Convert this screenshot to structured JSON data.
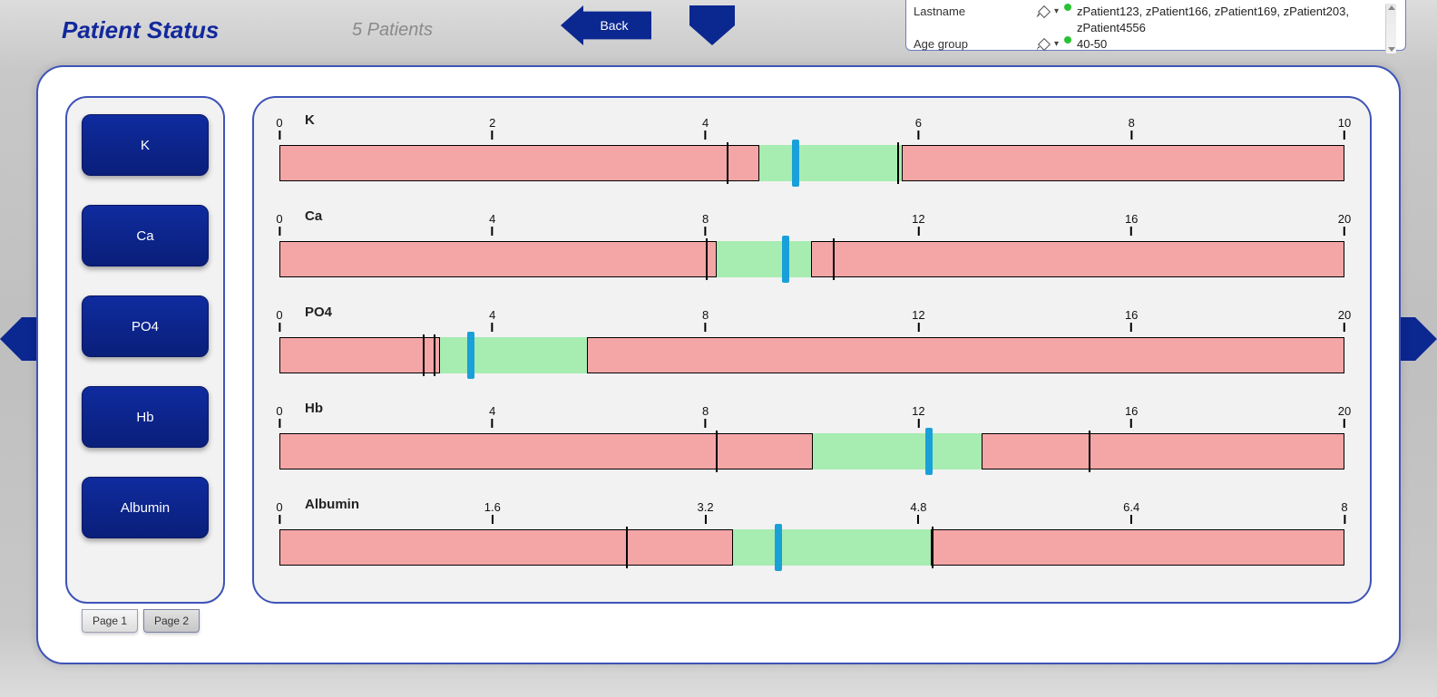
{
  "header": {
    "title": "Patient Status",
    "subtitle": "5 Patients",
    "back_label": "Back"
  },
  "filters": {
    "rows": [
      {
        "label": "Lastname",
        "value": "zPatient123, zPatient166, zPatient169, zPatient203, zPatient4556"
      },
      {
        "label": "Age group",
        "value": "40-50"
      }
    ]
  },
  "colors": {
    "brand": "#0b2790",
    "card_border": "#3e54b7",
    "bar_red": "#f4a6a6",
    "bar_green": "#a7ecb1",
    "cursor_blue": "#1aa0d8"
  },
  "analyte_buttons": [
    "K",
    "Ca",
    "PO4",
    "Hb",
    "Albumin"
  ],
  "page_tabs": {
    "labels": [
      "Page 1",
      "Page 2"
    ],
    "active_index": 1
  },
  "metrics": [
    {
      "name": "K",
      "min": 0,
      "max": 10,
      "ticks": [
        0,
        2,
        4,
        6,
        8,
        10
      ],
      "green_start": 4.5,
      "green_end": 5.85,
      "marks": [
        4.2,
        5.8
      ],
      "cursor": 4.85
    },
    {
      "name": "Ca",
      "min": 0,
      "max": 20,
      "ticks": [
        0,
        4,
        8,
        12,
        16,
        20
      ],
      "green_start": 8.2,
      "green_end": 10.0,
      "marks": [
        8.0,
        10.4
      ],
      "cursor": 9.5
    },
    {
      "name": "PO4",
      "min": 0,
      "max": 20,
      "ticks": [
        0,
        4,
        8,
        12,
        16,
        20
      ],
      "green_start": 3.0,
      "green_end": 5.8,
      "marks": [
        2.7,
        2.9
      ],
      "cursor": 3.6
    },
    {
      "name": "Hb",
      "min": 0,
      "max": 20,
      "ticks": [
        0,
        4,
        8,
        12,
        16,
        20
      ],
      "green_start": 10.0,
      "green_end": 13.2,
      "marks": [
        8.2,
        15.2
      ],
      "cursor": 12.2
    },
    {
      "name": "Albumin",
      "min": 0,
      "max": 8,
      "ticks": [
        0,
        1.6,
        3.2,
        4.8,
        6.4,
        8
      ],
      "green_start": 3.4,
      "green_end": 4.9,
      "marks": [
        2.6,
        4.9
      ],
      "cursor": 3.75
    }
  ]
}
